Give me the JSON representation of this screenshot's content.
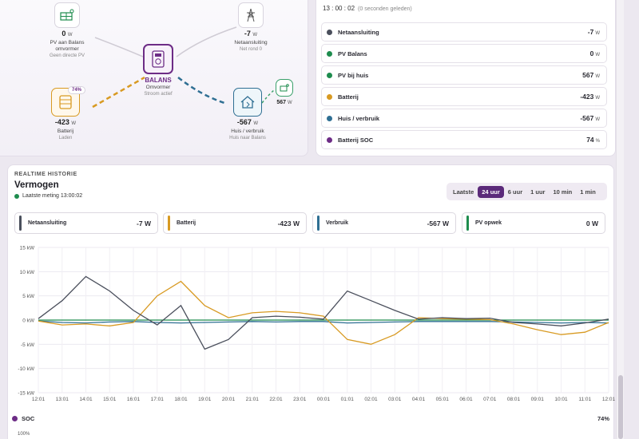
{
  "flow": {
    "pv": {
      "value": "0",
      "unit": "W",
      "label1": "PV aan Balans",
      "label2": "omvormer",
      "sub": "Geen directe PV"
    },
    "grid": {
      "value": "-7",
      "unit": "W",
      "label": "Netaansluiting",
      "sub": "Net rond 0"
    },
    "inverter": {
      "name": "BALANS",
      "label": "Omvormer",
      "sub": "Stroom actief"
    },
    "battery": {
      "value": "-423",
      "unit": "W",
      "label": "Batterij",
      "sub": "Laden",
      "soc": "74%"
    },
    "house": {
      "value": "-567",
      "unit": "W",
      "label": "Huis / verbruik",
      "sub": "Huis naar Balans"
    },
    "house_pv": {
      "value": "567",
      "unit": "W"
    }
  },
  "status": {
    "time": "13 : 00 : 02",
    "ago": "(0 seconden geleden)"
  },
  "values": [
    {
      "name": "Netaansluiting",
      "value": "-7",
      "unit": "W",
      "color": "#4a4f5c"
    },
    {
      "name": "PV Balans",
      "value": "0",
      "unit": "W",
      "color": "#1e8c4e"
    },
    {
      "name": "PV bij huis",
      "value": "567",
      "unit": "W",
      "color": "#1e8c4e"
    },
    {
      "name": "Batterij",
      "value": "-423",
      "unit": "W",
      "color": "#d89a22"
    },
    {
      "name": "Huis / verbruik",
      "value": "-567",
      "unit": "W",
      "color": "#2f6f93"
    },
    {
      "name": "Batterij SOC",
      "value": "74",
      "unit": "%",
      "color": "#6d2c86"
    }
  ],
  "history": {
    "caption": "REALTIME HISTORIE",
    "title": "Vermogen",
    "last_measurement": "Laatste meting 13:00:02",
    "ranges": [
      "Laatste",
      "24 uur",
      "6 uur",
      "1 uur",
      "10 min",
      "1 min"
    ],
    "active_range": "24 uur",
    "legend": [
      {
        "name": "Netaansluiting",
        "value": "-7 W",
        "color": "#4a4f5c"
      },
      {
        "name": "Batterij",
        "value": "-423 W",
        "color": "#d89a22"
      },
      {
        "name": "Verbruik",
        "value": "-567 W",
        "color": "#2f6f93"
      },
      {
        "name": "PV opwek",
        "value": "0 W",
        "color": "#1e8c4e"
      }
    ],
    "soc_label": "SOC",
    "soc_value": "74%",
    "soc_axis_top": "100%"
  },
  "chart_data": {
    "type": "line",
    "ylim": [
      -15,
      15
    ],
    "yticks": [
      "15 kW",
      "10 kW",
      "5 kW",
      "0 kW",
      "-5 kW",
      "-10 kW",
      "-15 kW"
    ],
    "x": [
      "12:01",
      "13:01",
      "14:01",
      "15:01",
      "16:01",
      "17:01",
      "18:01",
      "19:01",
      "20:01",
      "21:01",
      "22:01",
      "23:01",
      "00:01",
      "01:01",
      "02:01",
      "03:01",
      "04:01",
      "05:01",
      "06:01",
      "07:01",
      "08:01",
      "09:01",
      "10:01",
      "11:01",
      "12:01"
    ],
    "series": [
      {
        "name": "Netaansluiting",
        "color": "#4a4f5c",
        "values": [
          0.3,
          4,
          9,
          6,
          2,
          -1,
          3,
          -6,
          -4,
          0.5,
          0.8,
          0.6,
          0.2,
          6,
          4,
          2,
          0.2,
          0.5,
          0.3,
          0.4,
          -0.5,
          -0.8,
          -1.2,
          -0.6,
          0.2
        ]
      },
      {
        "name": "Batterij",
        "color": "#d89a22",
        "values": [
          -0.2,
          -1,
          -0.8,
          -1.2,
          -0.5,
          5,
          8,
          3,
          0.5,
          1.5,
          1.8,
          1.5,
          0.8,
          -4,
          -5,
          -3,
          0.5,
          0.3,
          0.2,
          0.1,
          -0.8,
          -2,
          -3,
          -2.5,
          -0.5
        ]
      },
      {
        "name": "Verbruik",
        "color": "#2f6f93",
        "values": [
          -0.2,
          -0.5,
          -0.6,
          -0.4,
          -0.3,
          -0.5,
          -0.6,
          -0.5,
          -0.4,
          -0.3,
          -0.4,
          -0.3,
          -0.3,
          -0.6,
          -0.5,
          -0.4,
          -0.3,
          -0.3,
          -0.3,
          -0.3,
          -0.4,
          -0.5,
          -0.6,
          -0.5,
          -0.6
        ]
      },
      {
        "name": "PV opwek",
        "color": "#1e8c4e",
        "values": [
          0,
          0,
          0,
          0,
          0,
          0,
          0,
          0,
          0,
          0,
          0,
          0,
          0,
          0,
          0,
          0,
          0,
          0,
          0,
          0,
          0,
          0,
          0,
          0,
          0
        ]
      }
    ]
  }
}
